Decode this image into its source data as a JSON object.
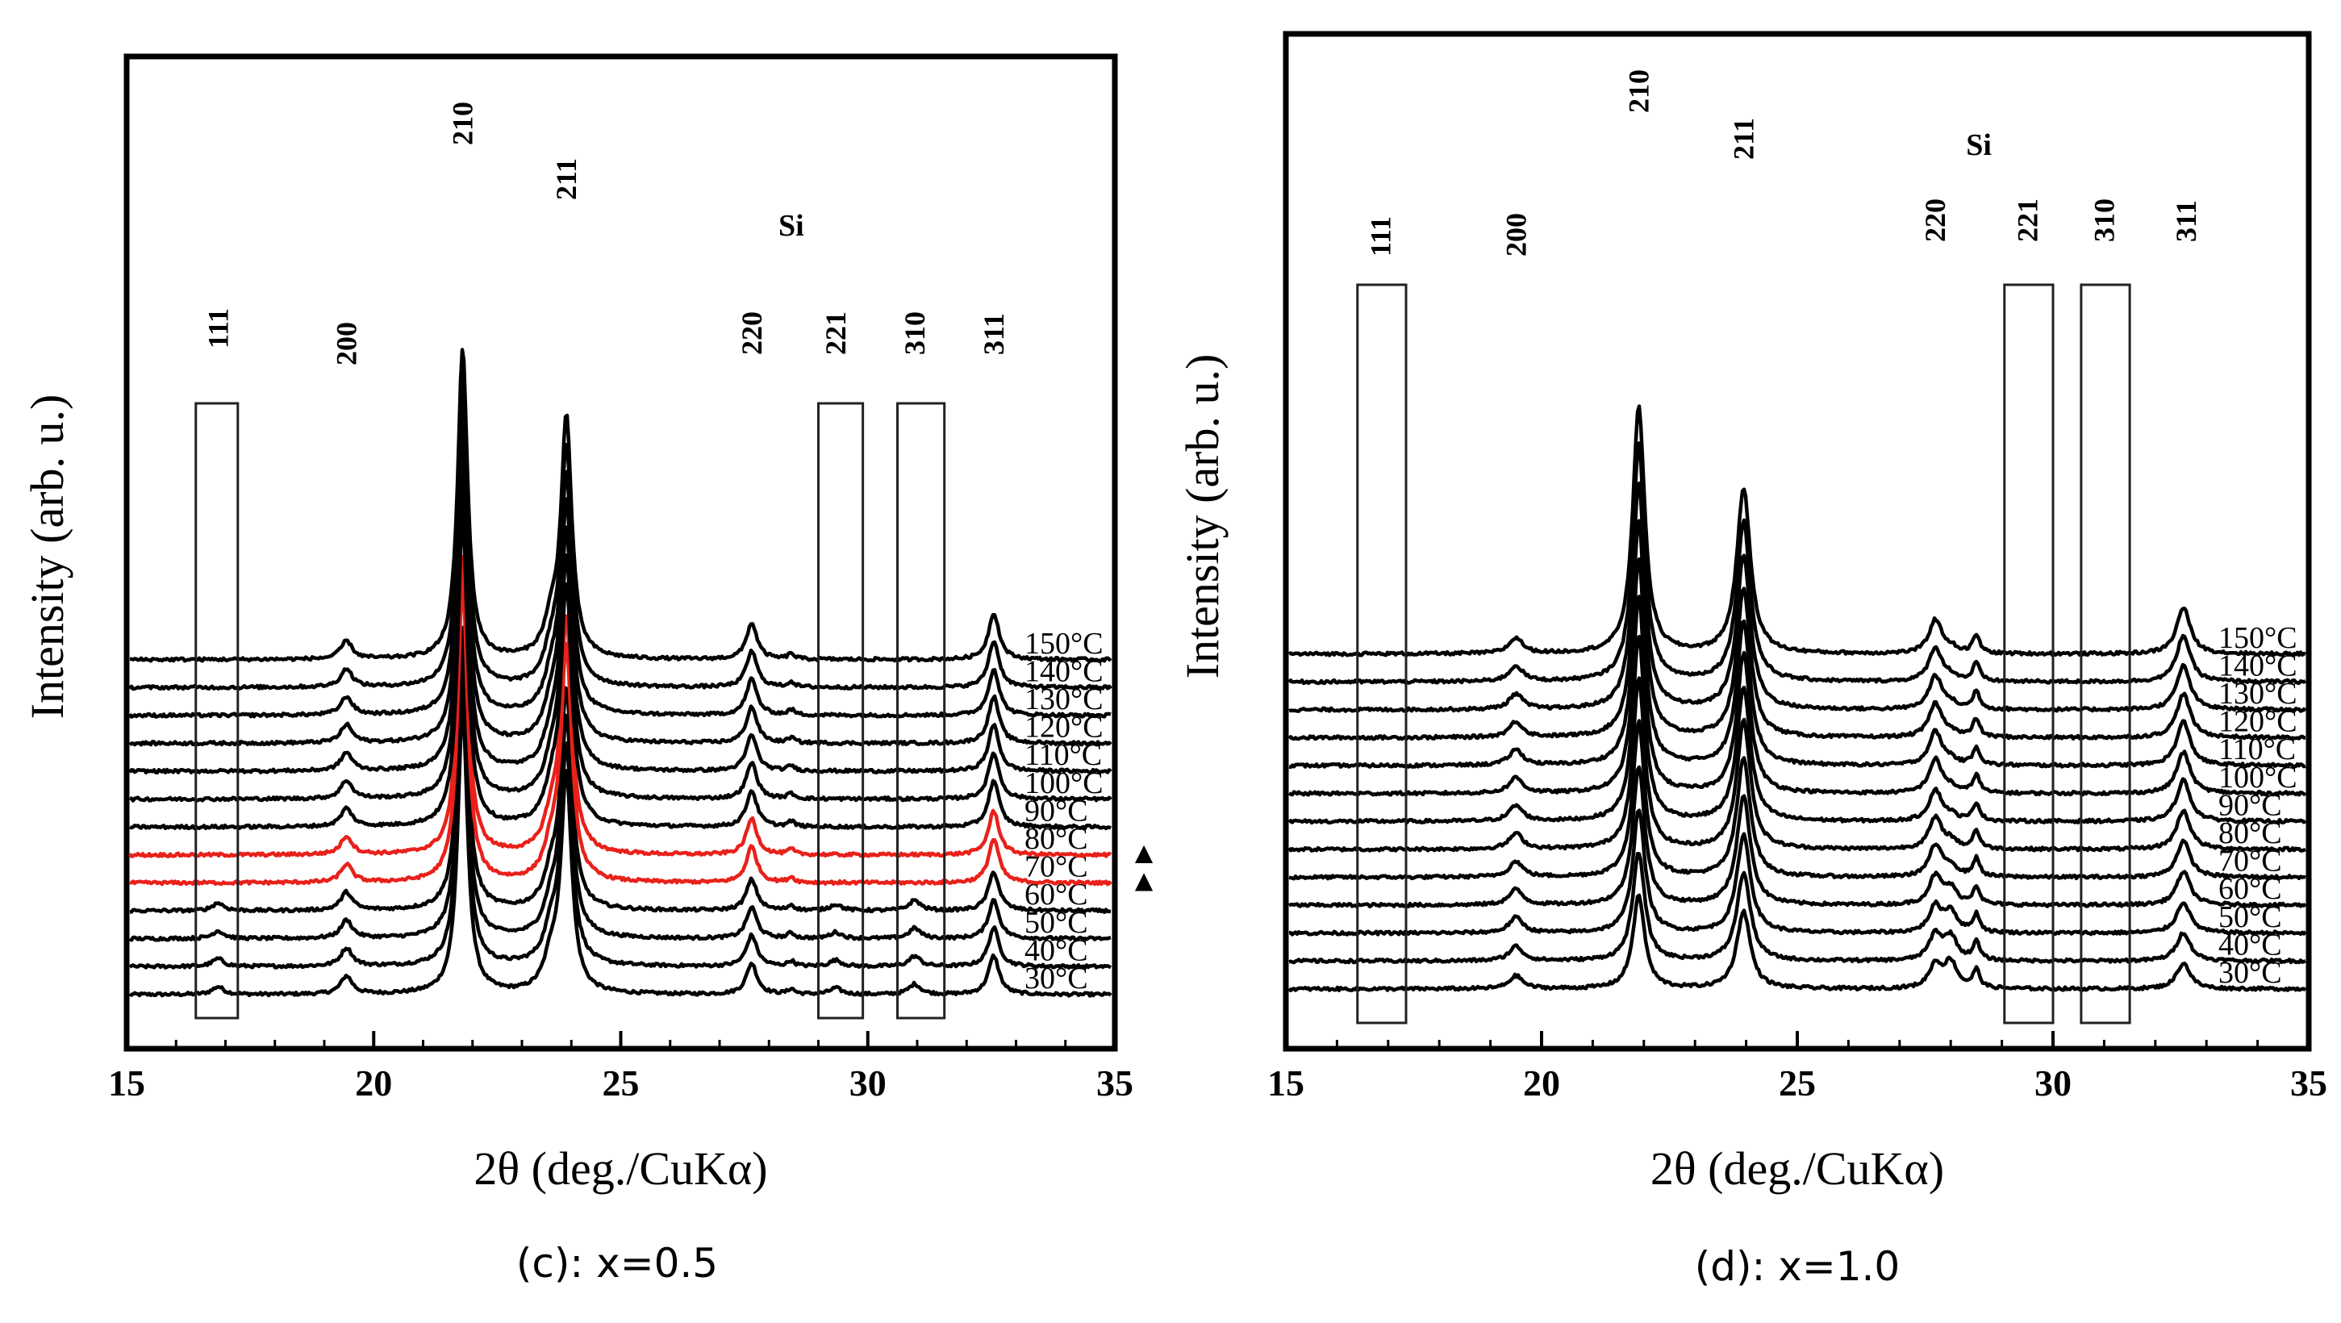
{
  "chart_data": [
    {
      "type": "line",
      "subtitle": "(c): x=0.5",
      "xlabel": "2θ (deg./CuKα)",
      "ylabel": "Intensity (arb. u.)",
      "xlim": [
        15,
        35
      ],
      "x_ticks": [
        "15",
        "20",
        "25",
        "30",
        "35"
      ],
      "grid": false,
      "series": [
        {
          "name": "30°C",
          "color": "#000000",
          "peak_heights": [
            0.15,
            0.35,
            5.5,
            4.2,
            0.6,
            0.12,
            0.2,
            0.75,
            0.1,
            0.6
          ]
        },
        {
          "name": "40°C",
          "color": "#000000",
          "peak_heights": [
            0.15,
            0.35,
            5.5,
            4.2,
            0.6,
            0.12,
            0.2,
            0.75,
            0.1,
            0.6
          ]
        },
        {
          "name": "50°C",
          "color": "#000000",
          "peak_heights": [
            0.15,
            0.35,
            5.5,
            4.2,
            0.6,
            0.12,
            0.2,
            0.75,
            0.1,
            0.6
          ]
        },
        {
          "name": "60°C",
          "color": "#000000",
          "peak_heights": [
            0.15,
            0.35,
            5.5,
            4.2,
            0.6,
            0.12,
            0.2,
            0.75,
            0.1,
            0.6
          ]
        },
        {
          "name": "70°C",
          "color": "#e8211a",
          "marker": "▲",
          "peak_heights": [
            0.0,
            0.35,
            5.8,
            4.5,
            0.7,
            0.0,
            0.0,
            0.85,
            0.1,
            0.6
          ]
        },
        {
          "name": "80°C",
          "color": "#e8211a",
          "marker": "▲",
          "peak_heights": [
            0.0,
            0.35,
            5.8,
            4.5,
            0.7,
            0.0,
            0.0,
            0.85,
            0.1,
            0.6
          ]
        },
        {
          "name": "90°C",
          "color": "#000000",
          "peak_heights": [
            0.0,
            0.35,
            6.0,
            4.6,
            0.7,
            0.0,
            0.0,
            0.9,
            0.1,
            0.6
          ]
        },
        {
          "name": "100°C",
          "color": "#000000",
          "peak_heights": [
            0.0,
            0.35,
            6.0,
            4.6,
            0.7,
            0.0,
            0.0,
            0.9,
            0.1,
            0.6
          ]
        },
        {
          "name": "110°C",
          "color": "#000000",
          "peak_heights": [
            0.0,
            0.35,
            6.0,
            4.6,
            0.7,
            0.0,
            0.0,
            0.9,
            0.1,
            0.6
          ]
        },
        {
          "name": "120°C",
          "color": "#000000",
          "peak_heights": [
            0.0,
            0.35,
            6.0,
            4.6,
            0.7,
            0.0,
            0.0,
            0.9,
            0.1,
            0.6
          ]
        },
        {
          "name": "130°C",
          "color": "#000000",
          "peak_heights": [
            0.0,
            0.35,
            6.0,
            4.6,
            0.7,
            0.0,
            0.0,
            0.9,
            0.1,
            0.6
          ]
        },
        {
          "name": "140°C",
          "color": "#000000",
          "peak_heights": [
            0.0,
            0.35,
            6.0,
            4.6,
            0.7,
            0.0,
            0.0,
            0.9,
            0.1,
            0.6
          ]
        },
        {
          "name": "150°C",
          "color": "#000000",
          "peak_heights": [
            0.0,
            0.35,
            6.0,
            4.6,
            0.7,
            0.0,
            0.0,
            0.9,
            0.1,
            0.6
          ]
        }
      ],
      "peaks": [
        {
          "label": "111",
          "x": 16.85,
          "width": 0.14
        },
        {
          "label": "200",
          "x": 19.45,
          "width": 0.14
        },
        {
          "label": "210",
          "x": 21.8,
          "width": 0.12
        },
        {
          "label": "211",
          "x": 23.9,
          "width": 0.13
        },
        {
          "label": "220",
          "x": 27.65,
          "width": 0.13
        },
        {
          "label": "221",
          "x": 29.35,
          "width": 0.14
        },
        {
          "label": "310",
          "x": 30.95,
          "width": 0.14
        },
        {
          "label": "311",
          "x": 32.55,
          "width": 0.13
        },
        {
          "label": "",
          "x": 28.45,
          "width": 0.08
        },
        {
          "label": "",
          "x": 23.6,
          "width": 0.18
        }
      ],
      "peak_labels": [
        {
          "text": "111",
          "x": 16.85
        },
        {
          "text": "200",
          "x": 19.45
        },
        {
          "text": "210",
          "x": 21.8
        },
        {
          "text": "211",
          "x": 23.9
        },
        {
          "text": "220",
          "x": 27.65
        },
        {
          "text": "221",
          "x": 29.35
        },
        {
          "text": "310",
          "x": 30.95
        },
        {
          "text": "311",
          "x": 32.55
        }
      ],
      "si_label": "Si",
      "boxes": [
        {
          "x0": 16.4,
          "x1": 17.25
        },
        {
          "x0": 29.0,
          "x1": 29.9
        },
        {
          "x0": 30.6,
          "x1": 31.55
        }
      ]
    },
    {
      "type": "line",
      "subtitle": "(d): x=1.0",
      "xlabel": "2θ (deg./CuKα)",
      "ylabel": "Intensity (arb. u.)",
      "xlim": [
        15,
        35
      ],
      "x_ticks": [
        "15",
        "20",
        "25",
        "30",
        "35"
      ],
      "grid": false,
      "series": [
        {
          "name": "30°C",
          "color": "#000000",
          "peak_heights": [
            0.0,
            0.25,
            1.8,
            1.5,
            0.45,
            0.0,
            0.0,
            0.5,
            0.35,
            0.5
          ]
        },
        {
          "name": "40°C",
          "color": "#000000",
          "peak_heights": [
            0.0,
            0.28,
            2.1,
            1.7,
            0.5,
            0.0,
            0.0,
            0.55,
            0.35,
            0.45
          ]
        },
        {
          "name": "50°C",
          "color": "#000000",
          "peak_heights": [
            0.0,
            0.3,
            2.4,
            1.9,
            0.5,
            0.0,
            0.0,
            0.6,
            0.35,
            0.4
          ]
        },
        {
          "name": "60°C",
          "color": "#000000",
          "peak_heights": [
            0.0,
            0.3,
            2.7,
            2.1,
            0.55,
            0.0,
            0.0,
            0.65,
            0.35,
            0.3
          ]
        },
        {
          "name": "70°C",
          "color": "#000000",
          "peak_heights": [
            0.0,
            0.3,
            3.0,
            2.3,
            0.6,
            0.0,
            0.0,
            0.7,
            0.35,
            0.2
          ]
        },
        {
          "name": "80°C",
          "color": "#000000",
          "peak_heights": [
            0.0,
            0.3,
            3.3,
            2.5,
            0.6,
            0.0,
            0.0,
            0.75,
            0.35,
            0.15
          ]
        },
        {
          "name": "90°C",
          "color": "#000000",
          "peak_heights": [
            0.0,
            0.3,
            3.6,
            2.6,
            0.6,
            0.0,
            0.0,
            0.8,
            0.35,
            0.1
          ]
        },
        {
          "name": "100°C",
          "color": "#000000",
          "peak_heights": [
            0.0,
            0.3,
            3.8,
            2.7,
            0.65,
            0.0,
            0.0,
            0.8,
            0.35,
            0.1
          ]
        },
        {
          "name": "110°C",
          "color": "#000000",
          "peak_heights": [
            0.0,
            0.3,
            4.0,
            2.8,
            0.65,
            0.0,
            0.0,
            0.85,
            0.35,
            0.1
          ]
        },
        {
          "name": "120°C",
          "color": "#000000",
          "peak_heights": [
            0.0,
            0.3,
            4.2,
            2.9,
            0.65,
            0.0,
            0.0,
            0.85,
            0.35,
            0.1
          ]
        },
        {
          "name": "130°C",
          "color": "#000000",
          "peak_heights": [
            0.0,
            0.3,
            4.4,
            3.0,
            0.65,
            0.0,
            0.0,
            0.85,
            0.35,
            0.1
          ]
        },
        {
          "name": "140°C",
          "color": "#000000",
          "peak_heights": [
            0.0,
            0.3,
            4.6,
            3.1,
            0.65,
            0.0,
            0.0,
            0.9,
            0.35,
            0.1
          ]
        },
        {
          "name": "150°C",
          "color": "#000000",
          "peak_heights": [
            0.0,
            0.3,
            4.8,
            3.2,
            0.65,
            0.0,
            0.0,
            0.9,
            0.35,
            0.1
          ]
        }
      ],
      "peaks": [
        {
          "label": "111",
          "x": 16.85,
          "width": 0.14
        },
        {
          "label": "200",
          "x": 19.5,
          "width": 0.16
        },
        {
          "label": "210",
          "x": 21.9,
          "width": 0.14
        },
        {
          "label": "211",
          "x": 23.95,
          "width": 0.16
        },
        {
          "label": "220",
          "x": 27.7,
          "width": 0.15
        },
        {
          "label": "221",
          "x": 29.35,
          "width": 0.14
        },
        {
          "label": "310",
          "x": 30.95,
          "width": 0.14
        },
        {
          "label": "311",
          "x": 32.55,
          "width": 0.16
        },
        {
          "label": "",
          "x": 28.5,
          "width": 0.08
        },
        {
          "label": "",
          "x": 28.0,
          "width": 0.15
        }
      ],
      "peak_labels": [
        {
          "text": "111",
          "x": 16.85
        },
        {
          "text": "200",
          "x": 19.5
        },
        {
          "text": "210",
          "x": 21.9
        },
        {
          "text": "211",
          "x": 23.95
        },
        {
          "text": "220",
          "x": 27.7
        },
        {
          "text": "221",
          "x": 29.5
        },
        {
          "text": "310",
          "x": 31.0
        },
        {
          "text": "311",
          "x": 32.6
        }
      ],
      "si_label": "Si",
      "boxes": [
        {
          "x0": 16.4,
          "x1": 17.35
        },
        {
          "x0": 29.05,
          "x1": 30.0
        },
        {
          "x0": 30.55,
          "x1": 31.5
        }
      ]
    }
  ]
}
